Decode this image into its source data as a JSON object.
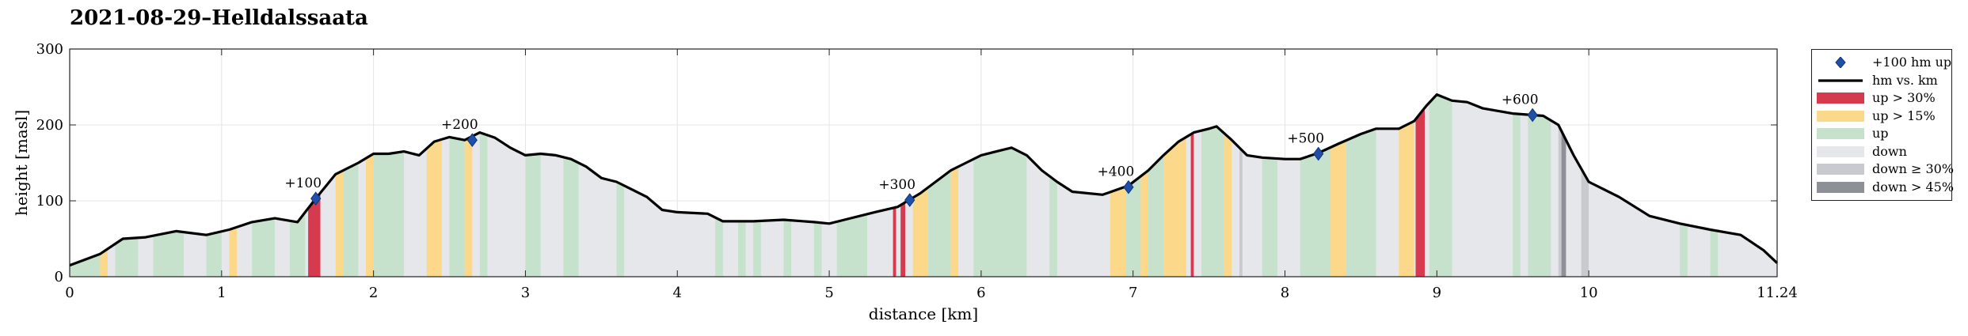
{
  "chart_data": {
    "type": "area",
    "title": "2021-08-29–Helldalssaata",
    "xlabel": "distance [km]",
    "ylabel": "height [masl]",
    "xlim": [
      0,
      11.24
    ],
    "ylim": [
      0,
      300
    ],
    "xticks": [
      "0",
      "1",
      "2",
      "3",
      "4",
      "5",
      "6",
      "7",
      "8",
      "9",
      "10",
      "11.24"
    ],
    "xtick_values": [
      0,
      1,
      2,
      3,
      4,
      5,
      6,
      7,
      8,
      9,
      10,
      11.24
    ],
    "yticks": [
      "0",
      "100",
      "200",
      "300"
    ],
    "ytick_values": [
      0,
      100,
      200,
      300
    ],
    "grid": true,
    "legend_position": "outside-right",
    "colors": {
      "line": "#000000",
      "marker": "#1f4fa8",
      "up_steep30": "#d63a4e",
      "up_15": "#fcd98a",
      "up": "#c6e2cc",
      "down": "#e6e7ea",
      "down_30": "#c9cad0",
      "down_45": "#8e9098"
    },
    "legend": [
      {
        "key": "marker",
        "label": "+100 hm up"
      },
      {
        "key": "line",
        "label": "hm vs. km"
      },
      {
        "key": "up_steep30",
        "label": "up > 30%"
      },
      {
        "key": "up_15",
        "label": "up > 15%"
      },
      {
        "key": "up",
        "label": "up"
      },
      {
        "key": "down",
        "label": "down"
      },
      {
        "key": "down_30",
        "label": "down ≥ 30%"
      },
      {
        "key": "down_45",
        "label": "down > 45%"
      }
    ],
    "profile": {
      "x": [
        0,
        0.2,
        0.35,
        0.5,
        0.7,
        0.9,
        1.05,
        1.2,
        1.35,
        1.5,
        1.62,
        1.75,
        1.9,
        2.0,
        2.1,
        2.2,
        2.3,
        2.4,
        2.5,
        2.6,
        2.7,
        2.8,
        2.9,
        3.0,
        3.1,
        3.2,
        3.3,
        3.4,
        3.5,
        3.6,
        3.7,
        3.8,
        3.9,
        4.0,
        4.2,
        4.3,
        4.5,
        4.7,
        4.9,
        5.0,
        5.1,
        5.3,
        5.45,
        5.6,
        5.8,
        5.9,
        6.0,
        6.1,
        6.2,
        6.3,
        6.4,
        6.5,
        6.6,
        6.8,
        6.97,
        7.1,
        7.2,
        7.3,
        7.4,
        7.5,
        7.55,
        7.65,
        7.75,
        7.85,
        8.0,
        8.1,
        8.22,
        8.35,
        8.5,
        8.6,
        8.75,
        8.85,
        8.93,
        9.0,
        9.1,
        9.2,
        9.3,
        9.5,
        9.7,
        9.8,
        9.9,
        10.0,
        10.2,
        10.4,
        10.6,
        10.8,
        11.0,
        11.15,
        11.24
      ],
      "y": [
        15,
        30,
        50,
        52,
        60,
        55,
        62,
        72,
        77,
        72,
        103,
        135,
        150,
        162,
        162,
        165,
        160,
        178,
        184,
        180,
        190,
        183,
        170,
        160,
        162,
        160,
        155,
        145,
        130,
        125,
        115,
        105,
        88,
        85,
        83,
        73,
        73,
        75,
        72,
        70,
        75,
        85,
        92,
        110,
        140,
        150,
        160,
        165,
        170,
        160,
        140,
        125,
        112,
        108,
        120,
        140,
        160,
        178,
        190,
        195,
        198,
        180,
        160,
        157,
        155,
        155,
        163,
        175,
        188,
        195,
        195,
        205,
        225,
        240,
        232,
        230,
        222,
        215,
        212,
        200,
        160,
        125,
        105,
        80,
        70,
        62,
        55,
        35,
        18
      ]
    },
    "segments": [
      {
        "cls": "up",
        "ranges": [
          [
            0,
            0.2
          ],
          [
            0.3,
            0.45
          ],
          [
            0.55,
            0.75
          ],
          [
            0.9,
            1.0
          ],
          [
            1.2,
            1.35
          ],
          [
            1.45,
            1.55
          ],
          [
            1.8,
            1.9
          ],
          [
            2.0,
            2.2
          ],
          [
            2.5,
            2.6
          ],
          [
            2.7,
            2.75
          ],
          [
            3.0,
            3.1
          ],
          [
            3.25,
            3.35
          ],
          [
            3.6,
            3.65
          ],
          [
            4.25,
            4.3
          ],
          [
            4.4,
            4.45
          ],
          [
            4.5,
            4.55
          ],
          [
            4.7,
            4.75
          ],
          [
            4.9,
            4.95
          ],
          [
            5.05,
            5.25
          ],
          [
            5.65,
            5.8
          ],
          [
            5.95,
            6.3
          ],
          [
            6.45,
            6.5
          ],
          [
            6.95,
            7.05
          ],
          [
            7.1,
            7.2
          ],
          [
            7.45,
            7.6
          ],
          [
            7.85,
            7.95
          ],
          [
            8.1,
            8.3
          ],
          [
            8.4,
            8.6
          ],
          [
            8.95,
            9.1
          ],
          [
            9.5,
            9.55
          ],
          [
            9.6,
            9.75
          ],
          [
            10.6,
            10.65
          ],
          [
            10.8,
            10.85
          ]
        ]
      },
      {
        "cls": "up_15",
        "ranges": [
          [
            0.2,
            0.25
          ],
          [
            1.05,
            1.1
          ],
          [
            1.6,
            1.62
          ],
          [
            1.75,
            1.8
          ],
          [
            1.95,
            2.0
          ],
          [
            2.35,
            2.45
          ],
          [
            2.6,
            2.65
          ],
          [
            5.55,
            5.65
          ],
          [
            5.8,
            5.85
          ],
          [
            6.85,
            6.95
          ],
          [
            7.05,
            7.1
          ],
          [
            7.2,
            7.35
          ],
          [
            7.6,
            7.65
          ],
          [
            8.3,
            8.4
          ],
          [
            8.75,
            8.85
          ]
        ]
      },
      {
        "cls": "up_steep30",
        "ranges": [
          [
            1.57,
            1.65
          ],
          [
            5.42,
            5.44
          ],
          [
            5.47,
            5.5
          ],
          [
            7.38,
            7.4
          ],
          [
            8.86,
            8.92
          ]
        ]
      },
      {
        "cls": "down_30",
        "ranges": [
          [
            7.7,
            7.72
          ],
          [
            9.8,
            9.82
          ],
          [
            9.95,
            10.0
          ]
        ]
      },
      {
        "cls": "down_45",
        "ranges": [
          [
            9.82,
            9.85
          ]
        ]
      }
    ],
    "markers": [
      {
        "x": 1.62,
        "y": 103,
        "label": "+100"
      },
      {
        "x": 2.65,
        "y": 180,
        "label": "+200"
      },
      {
        "x": 5.53,
        "y": 101,
        "label": "+300"
      },
      {
        "x": 6.97,
        "y": 118,
        "label": "+400"
      },
      {
        "x": 8.22,
        "y": 162,
        "label": "+500"
      },
      {
        "x": 9.63,
        "y": 213,
        "label": "+600"
      }
    ]
  }
}
